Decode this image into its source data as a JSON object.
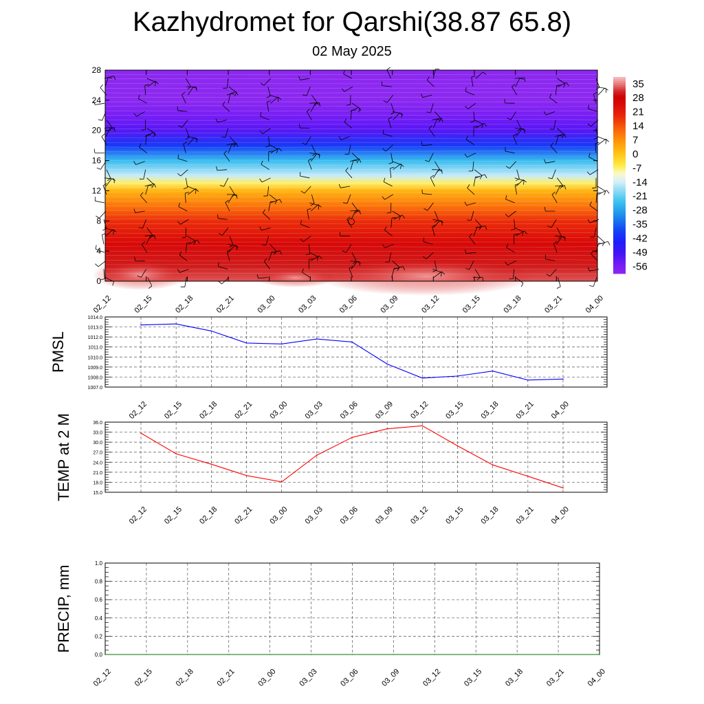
{
  "title": "Kazhydromet for Qarshi(38.87 65.8)",
  "subtitle": "02 May 2025",
  "time_labels": [
    "02_12",
    "02_15",
    "02_18",
    "02_21",
    "03_00",
    "03_03",
    "03_06",
    "03_09",
    "03_12",
    "03_15",
    "03_18",
    "03_21",
    "04_00"
  ],
  "chart_data": [
    {
      "type": "heatmap",
      "name": "temperature-cross-section",
      "x": [
        "02_12",
        "02_15",
        "02_18",
        "02_21",
        "03_00",
        "03_03",
        "03_06",
        "03_09",
        "03_12",
        "03_15",
        "03_18",
        "03_21",
        "04_00"
      ],
      "y_ticks": [
        0,
        4,
        8,
        12,
        16,
        20,
        24,
        28
      ],
      "ylim": [
        0,
        28
      ],
      "colorbar": {
        "labels": [
          "35",
          "28",
          "21",
          "14",
          "7",
          "0",
          "-7",
          "-14",
          "-21",
          "-28",
          "-35",
          "-42",
          "-49",
          "-56"
        ],
        "range": [
          -60,
          38
        ]
      },
      "level_profile": [
        {
          "y": 0,
          "v": 33
        },
        {
          "y": 2,
          "v": 30
        },
        {
          "y": 5,
          "v": 25
        },
        {
          "y": 8,
          "v": 18
        },
        {
          "y": 10,
          "v": 10
        },
        {
          "y": 12,
          "v": 2
        },
        {
          "y": 13,
          "v": -7
        },
        {
          "y": 14,
          "v": -15
        },
        {
          "y": 16,
          "v": -25
        },
        {
          "y": 18,
          "v": -40
        },
        {
          "y": 20,
          "v": -52
        },
        {
          "y": 22,
          "v": -56
        },
        {
          "y": 24,
          "v": -60
        },
        {
          "y": 28,
          "v": -60
        }
      ],
      "has_wind_barbs": true
    },
    {
      "type": "line",
      "name": "pmsl",
      "ylabel": "PMSL",
      "x": [
        "02_12",
        "02_15",
        "02_18",
        "02_21",
        "03_00",
        "03_03",
        "03_06",
        "03_09",
        "03_12",
        "03_15",
        "03_18",
        "03_21",
        "04_00"
      ],
      "values": [
        1013.2,
        1013.3,
        1012.6,
        1011.4,
        1011.3,
        1011.8,
        1011.5,
        1009.3,
        1007.9,
        1008.1,
        1008.6,
        1007.7,
        1007.8
      ],
      "ylim": [
        1007.0,
        1014.0
      ],
      "y_ticks": [
        "1007.0",
        "1008.0",
        "1009.0",
        "1010.0",
        "1011.0",
        "1012.0",
        "1013.0",
        "1014.0"
      ],
      "color": "#0000ff",
      "grid": true
    },
    {
      "type": "line",
      "name": "temp-2m",
      "ylabel": "TEMP at 2 M",
      "x": [
        "02_12",
        "02_15",
        "02_18",
        "02_21",
        "03_00",
        "03_03",
        "03_06",
        "03_09",
        "03_12",
        "03_15",
        "03_18",
        "03_21",
        "04_00"
      ],
      "values": [
        32.7,
        26.5,
        23.4,
        20.0,
        18.1,
        26.1,
        31.4,
        34.0,
        34.9,
        28.9,
        23.2,
        19.8,
        16.3
      ],
      "ylim": [
        15.0,
        36.0
      ],
      "y_ticks": [
        "15.0",
        "18.0",
        "21.0",
        "24.0",
        "27.0",
        "30.0",
        "33.0",
        "36.0"
      ],
      "color": "#ff0000",
      "grid": true
    },
    {
      "type": "line",
      "name": "precip",
      "ylabel": "PRECIP, mm",
      "x": [
        "02_12",
        "02_15",
        "02_18",
        "02_21",
        "03_00",
        "03_03",
        "03_06",
        "03_09",
        "03_12",
        "03_15",
        "03_18",
        "03_21",
        "04_00"
      ],
      "values": [
        0,
        0,
        0,
        0,
        0,
        0,
        0,
        0,
        0,
        0,
        0,
        0,
        0
      ],
      "ylim": [
        0.0,
        1.0
      ],
      "y_ticks": [
        "0.0",
        "0.2",
        "0.4",
        "0.6",
        "0.8",
        "1.0"
      ],
      "color": "#007700",
      "grid": true
    }
  ]
}
